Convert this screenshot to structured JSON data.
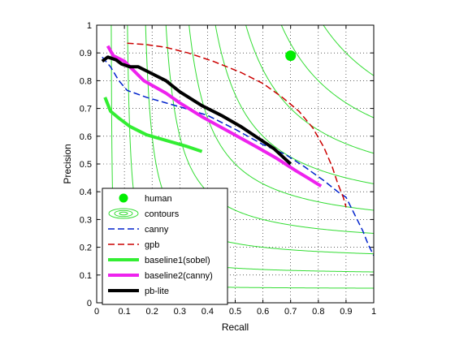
{
  "chart_data": {
    "type": "line",
    "title": "",
    "xlabel": "Recall",
    "ylabel": "Precision",
    "xlim": [
      0,
      1
    ],
    "ylim": [
      0,
      1
    ],
    "grid": true,
    "grid_style": "dotted",
    "legend_position": "lower-left",
    "x_ticks": [
      "0",
      "0.1",
      "0.2",
      "0.3",
      "0.4",
      "0.5",
      "0.6",
      "0.7",
      "0.8",
      "0.9",
      "1"
    ],
    "y_ticks": [
      "0",
      "0.1",
      "0.2",
      "0.3",
      "0.4",
      "0.5",
      "0.6",
      "0.7",
      "0.8",
      "0.9",
      "1"
    ],
    "contours": {
      "name": "contours",
      "color": "#33dd33",
      "f_levels": [
        0.1,
        0.2,
        0.3,
        0.4,
        0.5,
        0.6,
        0.7,
        0.8,
        0.9
      ]
    },
    "series": [
      {
        "name": "human",
        "kind": "marker",
        "color": "#00ee00",
        "points": [
          [
            0.7,
            0.89
          ]
        ]
      },
      {
        "name": "canny",
        "kind": "line",
        "color": "#0022cc",
        "dash": "8,4",
        "width": 1.5,
        "points": [
          [
            0.02,
            0.885
          ],
          [
            0.05,
            0.85
          ],
          [
            0.08,
            0.8
          ],
          [
            0.11,
            0.765
          ],
          [
            0.18,
            0.74
          ],
          [
            0.25,
            0.72
          ],
          [
            0.32,
            0.7
          ],
          [
            0.4,
            0.675
          ],
          [
            0.5,
            0.625
          ],
          [
            0.6,
            0.57
          ],
          [
            0.68,
            0.535
          ],
          [
            0.75,
            0.49
          ],
          [
            0.82,
            0.44
          ],
          [
            0.87,
            0.4
          ],
          [
            0.9,
            0.38
          ],
          [
            0.93,
            0.32
          ],
          [
            0.96,
            0.26
          ],
          [
            0.98,
            0.21
          ],
          [
            1.0,
            0.17
          ]
        ]
      },
      {
        "name": "gpb",
        "kind": "line",
        "color": "#cc0000",
        "dash": "8,4",
        "width": 1.5,
        "points": [
          [
            0.11,
            0.935
          ],
          [
            0.18,
            0.93
          ],
          [
            0.25,
            0.92
          ],
          [
            0.33,
            0.9
          ],
          [
            0.42,
            0.87
          ],
          [
            0.52,
            0.83
          ],
          [
            0.6,
            0.79
          ],
          [
            0.67,
            0.74
          ],
          [
            0.73,
            0.69
          ],
          [
            0.78,
            0.63
          ],
          [
            0.82,
            0.56
          ],
          [
            0.85,
            0.49
          ],
          [
            0.87,
            0.43
          ],
          [
            0.89,
            0.38
          ],
          [
            0.9,
            0.345
          ]
        ]
      },
      {
        "name": "baseline1(sobel)",
        "kind": "line",
        "color": "#33ee33",
        "width": 4,
        "points": [
          [
            0.03,
            0.74
          ],
          [
            0.05,
            0.69
          ],
          [
            0.08,
            0.665
          ],
          [
            0.12,
            0.635
          ],
          [
            0.18,
            0.605
          ],
          [
            0.25,
            0.585
          ],
          [
            0.32,
            0.565
          ],
          [
            0.38,
            0.545
          ]
        ]
      },
      {
        "name": "baseline2(canny)",
        "kind": "line",
        "color": "#ee22ee",
        "width": 4,
        "points": [
          [
            0.04,
            0.925
          ],
          [
            0.06,
            0.89
          ],
          [
            0.1,
            0.87
          ],
          [
            0.13,
            0.84
          ],
          [
            0.17,
            0.8
          ],
          [
            0.25,
            0.755
          ],
          [
            0.3,
            0.72
          ],
          [
            0.38,
            0.67
          ],
          [
            0.48,
            0.615
          ],
          [
            0.58,
            0.56
          ],
          [
            0.65,
            0.52
          ],
          [
            0.72,
            0.475
          ],
          [
            0.77,
            0.445
          ],
          [
            0.81,
            0.42
          ]
        ]
      },
      {
        "name": "pb-lite",
        "kind": "line",
        "color": "#000000",
        "width": 4,
        "points": [
          [
            0.02,
            0.87
          ],
          [
            0.04,
            0.885
          ],
          [
            0.07,
            0.875
          ],
          [
            0.09,
            0.86
          ],
          [
            0.12,
            0.85
          ],
          [
            0.15,
            0.85
          ],
          [
            0.19,
            0.83
          ],
          [
            0.25,
            0.8
          ],
          [
            0.3,
            0.76
          ],
          [
            0.38,
            0.71
          ],
          [
            0.45,
            0.675
          ],
          [
            0.52,
            0.635
          ],
          [
            0.58,
            0.595
          ],
          [
            0.64,
            0.555
          ],
          [
            0.7,
            0.5
          ]
        ]
      }
    ],
    "legend": [
      {
        "label": "human",
        "kind": "marker",
        "color": "#00ee00"
      },
      {
        "label": "contours",
        "kind": "contour",
        "color": "#33dd33"
      },
      {
        "label": "canny",
        "kind": "line",
        "color": "#0022cc",
        "dash": "8,4",
        "width": 1.5
      },
      {
        "label": "gpb",
        "kind": "line",
        "color": "#cc0000",
        "dash": "8,4",
        "width": 1.5
      },
      {
        "label": "baseline1(sobel)",
        "kind": "line",
        "color": "#33ee33",
        "width": 4
      },
      {
        "label": "baseline2(canny)",
        "kind": "line",
        "color": "#ee22ee",
        "width": 4
      },
      {
        "label": "pb-lite",
        "kind": "line",
        "color": "#000000",
        "width": 4
      }
    ]
  }
}
